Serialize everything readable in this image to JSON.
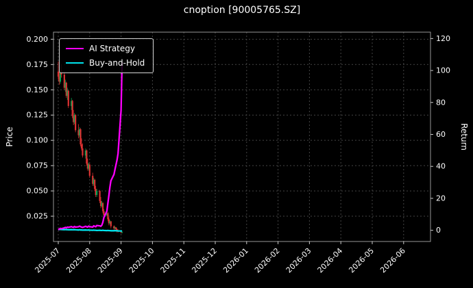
{
  "chart_data": {
    "type": "candlestick+line",
    "title": "cnoption [90005765.SZ]",
    "x_axis": {
      "tick_labels": [
        "2025-07",
        "2025-08",
        "2025-09",
        "2025-10",
        "2025-11",
        "2025-12",
        "2026-01",
        "2026-02",
        "2026-03",
        "2026-04",
        "2026-05",
        "2026-06"
      ]
    },
    "y_left": {
      "label": "Price",
      "tick_labels": [
        "0.200",
        "0.175",
        "0.150",
        "0.125",
        "0.100",
        "0.075",
        "0.050",
        "0.025"
      ],
      "lim": [
        0,
        0.207
      ]
    },
    "y_right": {
      "label": "Return",
      "tick_labels": [
        "120",
        "100",
        "80",
        "60",
        "40",
        "20",
        "0"
      ],
      "lim": [
        -7,
        124
      ]
    },
    "colors": {
      "background": "#000000",
      "text": "#ffffff",
      "grid": "#454545",
      "axis_border": "#999999",
      "tick": "#cccccc",
      "candle_up": "#00a550",
      "candle_down": "#dc3232"
    },
    "grid": true,
    "legend_position": "upper-left",
    "candles": [
      [
        "2025-07-01",
        0.168,
        0.178,
        0.16,
        0.163
      ],
      [
        "2025-07-02",
        0.163,
        0.17,
        0.155,
        0.158
      ],
      [
        "2025-07-03",
        0.158,
        0.172,
        0.156,
        0.169
      ],
      [
        "2025-07-04",
        0.169,
        0.175,
        0.162,
        0.165
      ],
      [
        "2025-07-07",
        0.165,
        0.168,
        0.15,
        0.152
      ],
      [
        "2025-07-08",
        0.152,
        0.16,
        0.148,
        0.157
      ],
      [
        "2025-07-09",
        0.157,
        0.158,
        0.142,
        0.144
      ],
      [
        "2025-07-10",
        0.144,
        0.152,
        0.14,
        0.149
      ],
      [
        "2025-07-11",
        0.149,
        0.15,
        0.132,
        0.134
      ],
      [
        "2025-07-14",
        0.134,
        0.142,
        0.13,
        0.139
      ],
      [
        "2025-07-15",
        0.139,
        0.14,
        0.122,
        0.124
      ],
      [
        "2025-07-16",
        0.124,
        0.13,
        0.115,
        0.118
      ],
      [
        "2025-07-17",
        0.118,
        0.127,
        0.116,
        0.125
      ],
      [
        "2025-07-18",
        0.125,
        0.126,
        0.108,
        0.11
      ],
      [
        "2025-07-21",
        0.11,
        0.116,
        0.102,
        0.105
      ],
      [
        "2025-07-22",
        0.105,
        0.113,
        0.103,
        0.111
      ],
      [
        "2025-07-23",
        0.111,
        0.112,
        0.094,
        0.096
      ],
      [
        "2025-07-24",
        0.096,
        0.102,
        0.09,
        0.092
      ],
      [
        "2025-07-25",
        0.092,
        0.097,
        0.083,
        0.085
      ],
      [
        "2025-07-28",
        0.085,
        0.092,
        0.082,
        0.09
      ],
      [
        "2025-07-29",
        0.09,
        0.091,
        0.075,
        0.077
      ],
      [
        "2025-07-30",
        0.077,
        0.082,
        0.07,
        0.072
      ],
      [
        "2025-07-31",
        0.072,
        0.078,
        0.07,
        0.076
      ],
      [
        "2025-08-01",
        0.076,
        0.077,
        0.063,
        0.065
      ],
      [
        "2025-08-04",
        0.065,
        0.068,
        0.055,
        0.057
      ],
      [
        "2025-08-05",
        0.057,
        0.063,
        0.055,
        0.061
      ],
      [
        "2025-08-06",
        0.061,
        0.062,
        0.05,
        0.052
      ],
      [
        "2025-08-07",
        0.052,
        0.055,
        0.044,
        0.046
      ],
      [
        "2025-08-08",
        0.046,
        0.052,
        0.044,
        0.05
      ],
      [
        "2025-08-11",
        0.05,
        0.051,
        0.038,
        0.04
      ],
      [
        "2025-08-12",
        0.04,
        0.044,
        0.033,
        0.035
      ],
      [
        "2025-08-13",
        0.035,
        0.04,
        0.034,
        0.038
      ],
      [
        "2025-08-14",
        0.038,
        0.039,
        0.028,
        0.03
      ],
      [
        "2025-08-15",
        0.03,
        0.032,
        0.024,
        0.026
      ],
      [
        "2025-08-18",
        0.026,
        0.03,
        0.025,
        0.028
      ],
      [
        "2025-08-19",
        0.028,
        0.029,
        0.02,
        0.022
      ],
      [
        "2025-08-20",
        0.022,
        0.024,
        0.016,
        0.018
      ],
      [
        "2025-08-21",
        0.018,
        0.021,
        0.017,
        0.02
      ],
      [
        "2025-08-22",
        0.02,
        0.02,
        0.013,
        0.015
      ],
      [
        "2025-08-25",
        0.015,
        0.016,
        0.011,
        0.013
      ],
      [
        "2025-08-26",
        0.013,
        0.015,
        0.012,
        0.014
      ],
      [
        "2025-08-27",
        0.014,
        0.014,
        0.01,
        0.012
      ],
      [
        "2025-08-28",
        0.012,
        0.013,
        0.009,
        0.011
      ],
      [
        "2025-08-29",
        0.011,
        0.012,
        0.009,
        0.01
      ],
      [
        "2025-09-01",
        0.01,
        0.011,
        0.008,
        0.009
      ],
      [
        "2025-09-02",
        0.009,
        0.01,
        0.008,
        0.0095
      ]
    ],
    "series": [
      {
        "name": "AI Strategy",
        "color": "#ff00ff",
        "axis": "right",
        "values": [
          0.3,
          0.8,
          1.2,
          1.0,
          1.5,
          1.8,
          1.5,
          2.0,
          1.8,
          2.3,
          2.0,
          1.8,
          2.4,
          2.0,
          2.2,
          2.6,
          2.3,
          2.0,
          1.8,
          2.5,
          2.2,
          2.0,
          2.6,
          2.3,
          2.0,
          2.8,
          2.5,
          2.2,
          3.0,
          2.8,
          2.5,
          3.2,
          5,
          8,
          12,
          17,
          22,
          27,
          31,
          35,
          38,
          41,
          44,
          48,
          75,
          105
        ]
      },
      {
        "name": "Buy-and-Hold",
        "color": "#00e5ee",
        "axis": "right",
        "values": [
          0.5,
          0.5,
          0.6,
          0.5,
          0.4,
          0.5,
          0.4,
          0.4,
          0.3,
          0.4,
          0.3,
          0.3,
          0.4,
          0.3,
          0.2,
          0.3,
          0.2,
          0.2,
          0.1,
          0.2,
          0.1,
          0.1,
          0.2,
          0.1,
          0.0,
          0.1,
          0.0,
          0.0,
          -0.1,
          0.0,
          -0.1,
          -0.1,
          0.0,
          -0.1,
          -0.2,
          -0.1,
          -0.2,
          -0.2,
          -0.3,
          -0.3,
          -0.2,
          -0.3,
          -0.3,
          -0.4,
          -0.4,
          -0.4
        ]
      }
    ]
  }
}
